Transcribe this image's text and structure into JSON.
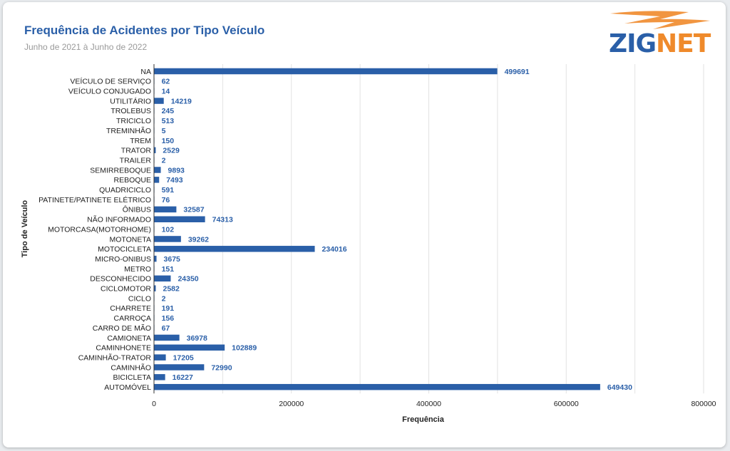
{
  "header": {
    "title": "Frequência de Acidentes por Tipo Veículo",
    "subtitle": "Junho de 2021 à Junho de 2022"
  },
  "logo": {
    "part1": "ZIG",
    "part2": "NET",
    "accent": "#ef8a2b",
    "brand": "#2a5fa8"
  },
  "colors": {
    "bar": "#2a5fa8",
    "label": "#2a5fa8",
    "grid": "#e2e2e2"
  },
  "chart_data": {
    "type": "bar",
    "orientation": "horizontal",
    "xlabel": "Frequência",
    "ylabel": "Tipo de Veículo",
    "xlim": [
      0,
      800000
    ],
    "xticks": [
      0,
      200000,
      400000,
      600000,
      800000
    ],
    "grid": true,
    "categories": [
      "NA",
      "VEÍCULO DE SERVIÇO",
      "VEÍCULO CONJUGADO",
      "UTILITÁRIO",
      "TROLEBUS",
      "TRICICLO",
      "TREMINHÃO",
      "TREM",
      "TRATOR",
      "TRAILER",
      "SEMIRREBOQUE",
      "REBOQUE",
      "QUADRICICLO",
      "PATINETE/PATINETE ELÉTRICO",
      "ÔNIBUS",
      "NÃO INFORMADO",
      "MOTORCASA(MOTORHOME)",
      "MOTONETA",
      "MOTOCICLETA",
      "MICRO-ONIBUS",
      "METRO",
      "DESCONHECIDO",
      "CICLOMOTOR",
      "CICLO",
      "CHARRETE",
      "CARROÇA",
      "CARRO DE MÃO",
      "CAMIONETA",
      "CAMINHONETE",
      "CAMINHÃO-TRATOR",
      "CAMINHÃO",
      "BICICLETA",
      "AUTOMÓVEL"
    ],
    "values": [
      499691,
      62,
      14,
      14219,
      245,
      513,
      5,
      150,
      2529,
      2,
      9893,
      7493,
      591,
      76,
      32587,
      74313,
      102,
      39262,
      234016,
      3675,
      151,
      24350,
      2582,
      2,
      191,
      156,
      67,
      36978,
      102889,
      17205,
      72990,
      16227,
      649430
    ]
  }
}
